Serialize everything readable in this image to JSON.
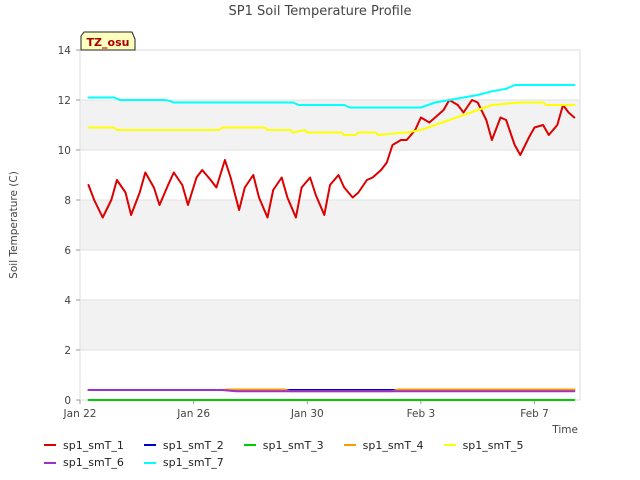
{
  "chart_data": {
    "type": "line",
    "title": "SP1 Soil Temperature Profile",
    "xlabel": "Time",
    "ylabel": "Soil Temperature (C)",
    "badge": "TZ_osu",
    "xlim": [
      0,
      17.6
    ],
    "ylim": [
      0,
      14
    ],
    "x_ticks": [
      {
        "x": 0,
        "label": "Jan 22"
      },
      {
        "x": 4,
        "label": "Jan 26"
      },
      {
        "x": 8,
        "label": "Jan 30"
      },
      {
        "x": 12,
        "label": "Feb 3"
      },
      {
        "x": 16,
        "label": "Feb 7"
      }
    ],
    "y_ticks": [
      0,
      2,
      4,
      6,
      8,
      10,
      12,
      14
    ],
    "grid": "horizontal bands",
    "legend_position": "bottom",
    "series": [
      {
        "name": "sp1_smT_1",
        "color": "#dd0000",
        "x": [
          0.3,
          0.5,
          0.8,
          1.1,
          1.3,
          1.6,
          1.8,
          2.1,
          2.3,
          2.6,
          2.8,
          3.1,
          3.3,
          3.6,
          3.8,
          4.1,
          4.3,
          4.6,
          4.8,
          5.1,
          5.3,
          5.6,
          5.8,
          6.1,
          6.3,
          6.6,
          6.8,
          7.1,
          7.3,
          7.6,
          7.8,
          8.1,
          8.3,
          8.6,
          8.8,
          9.1,
          9.3,
          9.6,
          9.8,
          10.1,
          10.3,
          10.6,
          10.8,
          11.0,
          11.3,
          11.5,
          11.8,
          12.0,
          12.3,
          12.5,
          12.8,
          13.0,
          13.3,
          13.5,
          13.8,
          14.0,
          14.3,
          14.5,
          14.8,
          15.0,
          15.3,
          15.5,
          15.8,
          16.0,
          16.3,
          16.5,
          16.8,
          17.0,
          17.2,
          17.4
        ],
        "y": [
          8.6,
          8.0,
          7.3,
          8.0,
          8.8,
          8.3,
          7.4,
          8.3,
          9.1,
          8.5,
          7.8,
          8.6,
          9.1,
          8.6,
          7.8,
          8.9,
          9.2,
          8.8,
          8.5,
          9.6,
          8.9,
          7.6,
          8.5,
          9.0,
          8.1,
          7.3,
          8.4,
          8.9,
          8.1,
          7.3,
          8.5,
          8.9,
          8.2,
          7.4,
          8.6,
          9.0,
          8.5,
          8.1,
          8.3,
          8.8,
          8.9,
          9.2,
          9.5,
          10.2,
          10.4,
          10.4,
          10.8,
          11.3,
          11.1,
          11.3,
          11.6,
          12.0,
          11.8,
          11.5,
          12.0,
          11.9,
          11.2,
          10.4,
          11.3,
          11.2,
          10.2,
          9.8,
          10.5,
          10.9,
          11.0,
          10.6,
          11.0,
          11.8,
          11.5,
          11.3
        ]
      },
      {
        "name": "sp1_smT_2",
        "color": "#0000cc",
        "x": [
          0.3,
          17.4
        ],
        "y": [
          0.4,
          0.4
        ]
      },
      {
        "name": "sp1_smT_3",
        "color": "#00cc00",
        "x": [
          0.3,
          17.4
        ],
        "y": [
          0.0,
          0.0
        ]
      },
      {
        "name": "sp1_smT_4",
        "color": "#ff9900",
        "x": [
          0.3,
          5.0,
          5.2,
          7.2,
          7.4,
          11.0,
          11.2,
          17.4
        ],
        "y": [
          0.4,
          0.4,
          0.42,
          0.42,
          0.35,
          0.35,
          0.42,
          0.42
        ]
      },
      {
        "name": "sp1_smT_5",
        "color": "#ffff00",
        "x": [
          0.3,
          1.2,
          1.3,
          4.9,
          5.0,
          6.5,
          6.6,
          7.4,
          7.5,
          7.9,
          8.0,
          9.2,
          9.3,
          9.7,
          9.8,
          10.4,
          10.5,
          11.4,
          11.5,
          12.0,
          12.5,
          13.0,
          13.5,
          14.0,
          14.5,
          15.5,
          16.0,
          16.3,
          16.4,
          17.2,
          17.4
        ],
        "y": [
          10.9,
          10.9,
          10.8,
          10.8,
          10.9,
          10.9,
          10.8,
          10.8,
          10.7,
          10.8,
          10.7,
          10.7,
          10.6,
          10.6,
          10.7,
          10.7,
          10.6,
          10.7,
          10.7,
          10.8,
          11.0,
          11.2,
          11.4,
          11.6,
          11.8,
          11.9,
          11.9,
          11.9,
          11.8,
          11.8,
          11.8
        ]
      },
      {
        "name": "sp1_smT_6",
        "color": "#9933cc",
        "x": [
          0.3,
          5.0,
          5.5,
          17.4
        ],
        "y": [
          0.4,
          0.4,
          0.35,
          0.35
        ]
      },
      {
        "name": "sp1_smT_7",
        "color": "#00ffff",
        "x": [
          0.3,
          1.2,
          1.4,
          2.9,
          3.0,
          3.2,
          3.3,
          7.5,
          7.7,
          9.3,
          9.5,
          12.0,
          12.5,
          13.0,
          13.5,
          14.0,
          14.5,
          15.0,
          15.3,
          17.4
        ],
        "y": [
          12.1,
          12.1,
          12.0,
          12.0,
          12.0,
          11.95,
          11.9,
          11.9,
          11.8,
          11.8,
          11.7,
          11.7,
          11.9,
          12.0,
          12.1,
          12.2,
          12.35,
          12.45,
          12.6,
          12.6
        ]
      }
    ]
  }
}
